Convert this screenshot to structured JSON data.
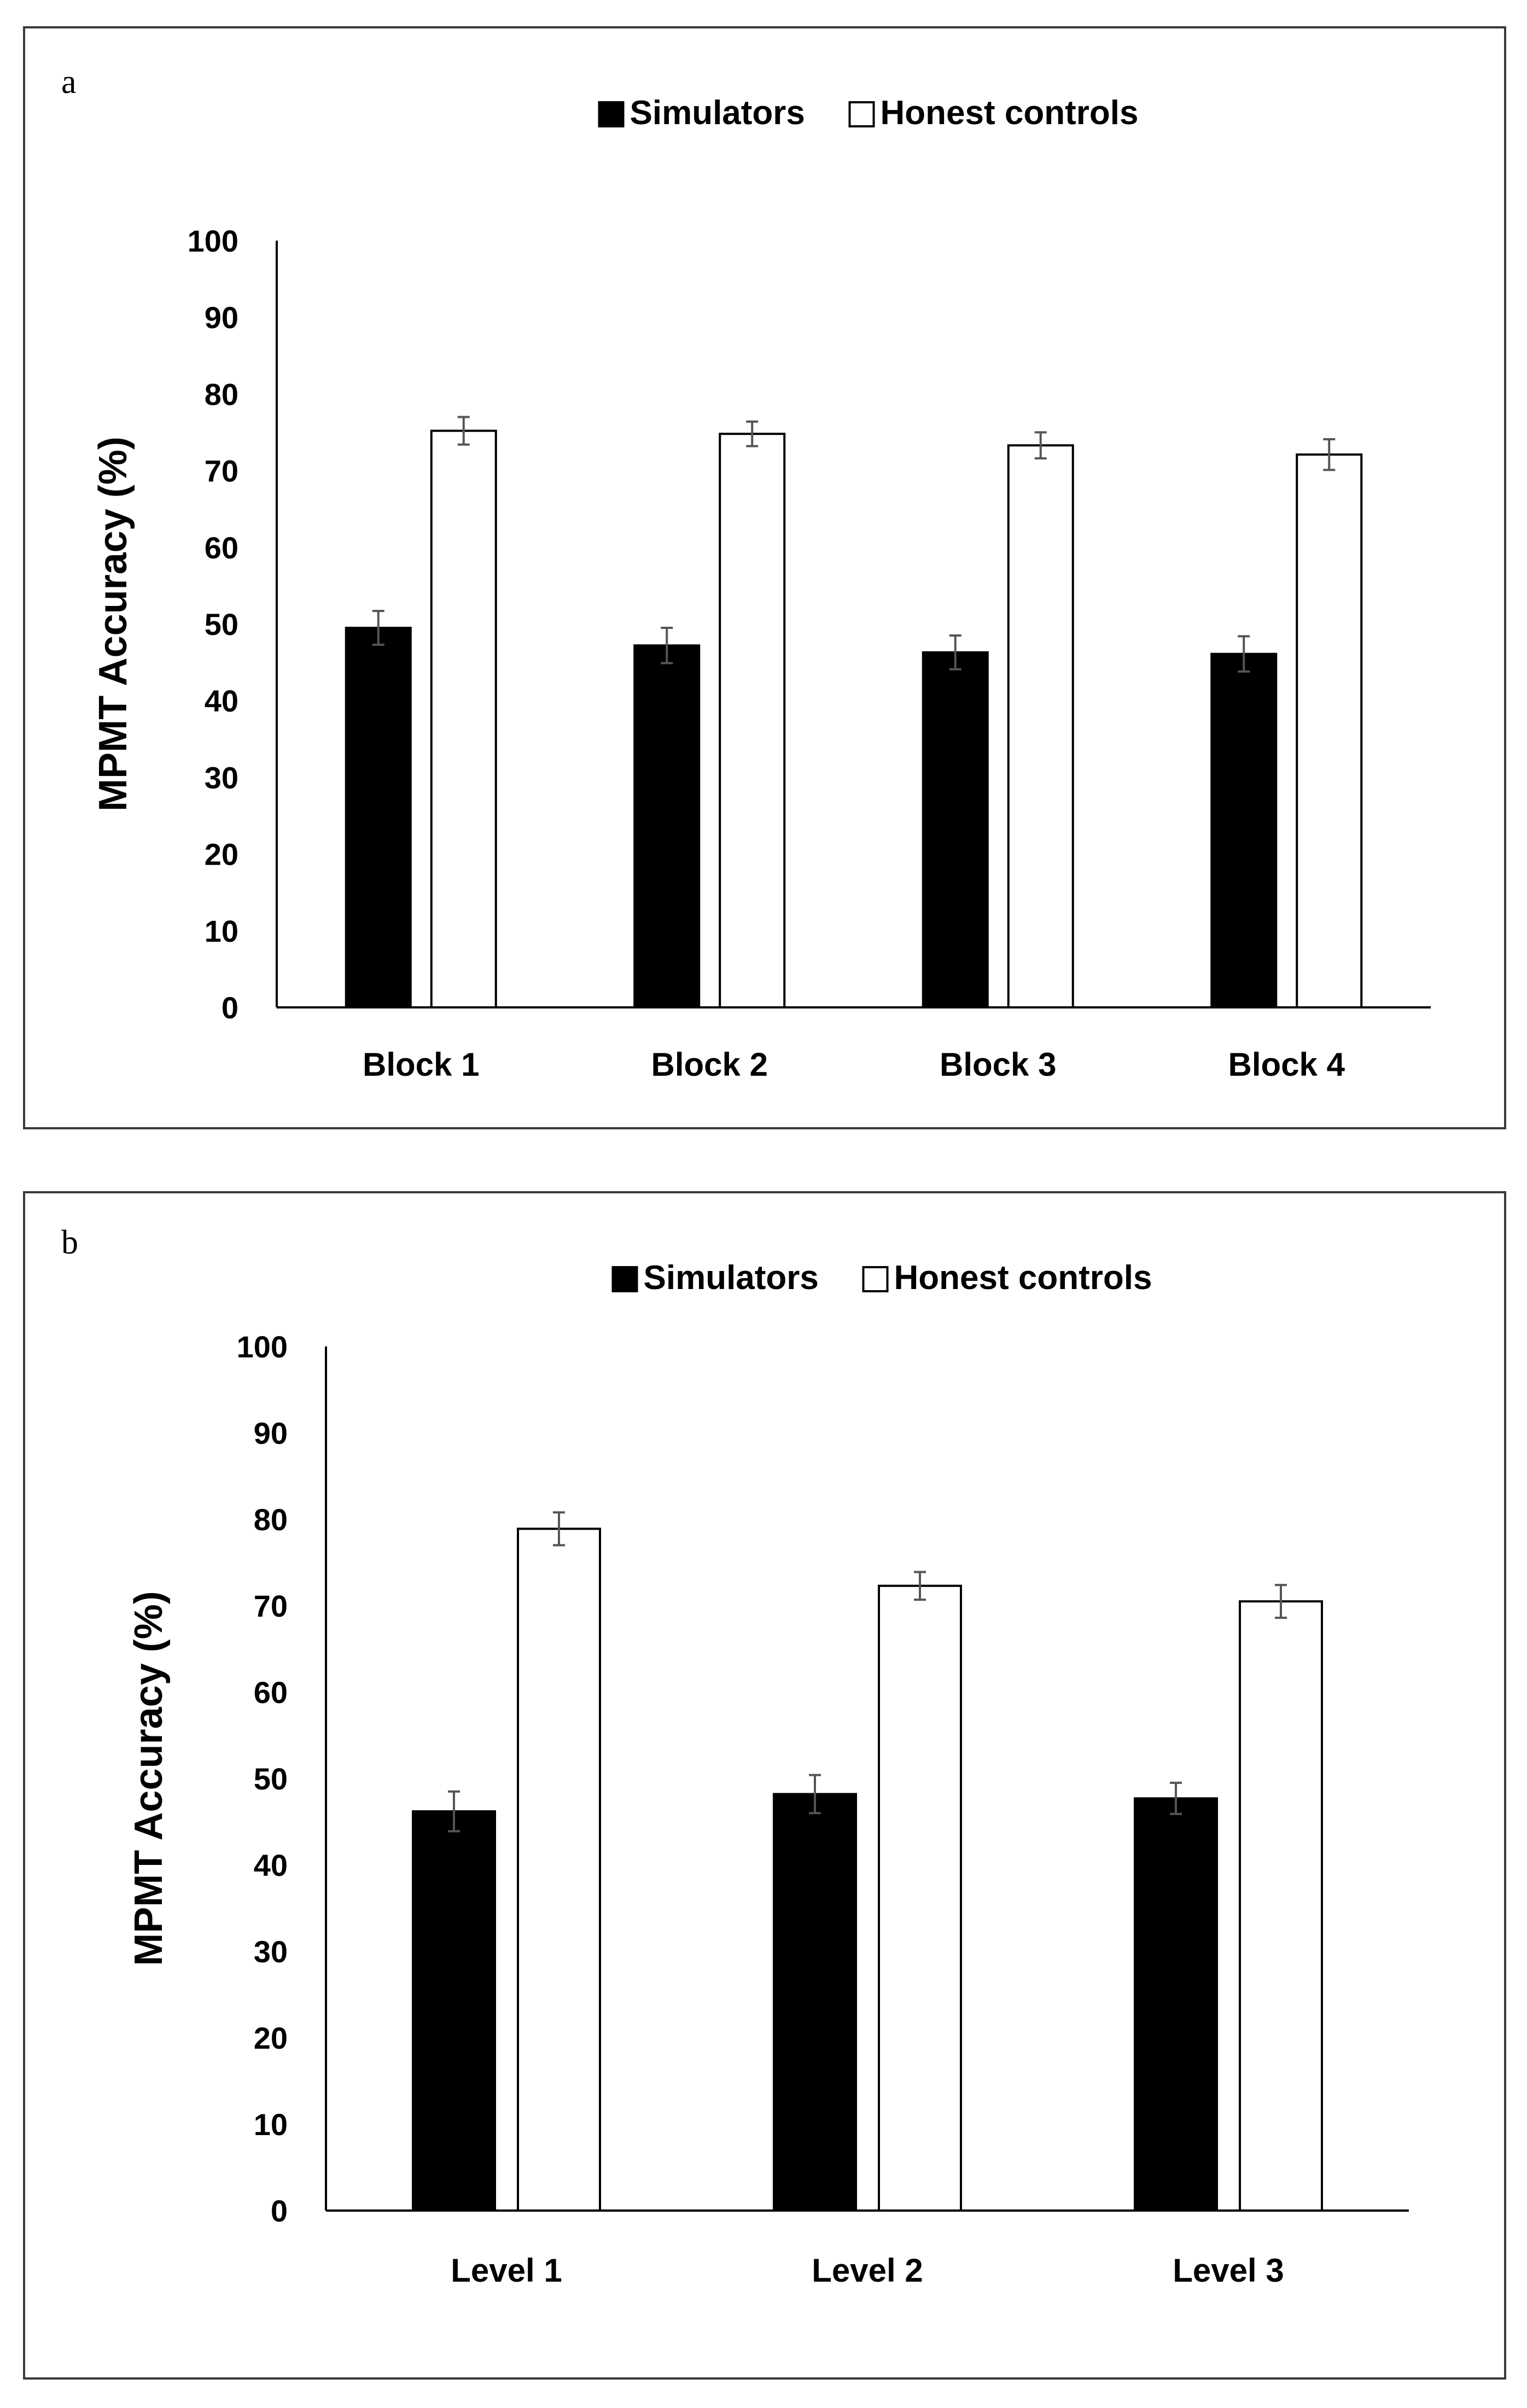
{
  "colors": {
    "simulators_fill": "#000000",
    "honest_fill": "#ffffff",
    "bar_stroke": "#000000",
    "axis": "#000000",
    "error_bar": "#555555",
    "frame": "#3a3a3a"
  },
  "chart_data": [
    {
      "id": "a",
      "type": "bar",
      "panel_label": "a",
      "ylabel": "MPMT Accuracy (%)",
      "xlabel": "",
      "ylim": [
        0,
        100
      ],
      "yticks": [
        "0",
        "10",
        "20",
        "30",
        "40",
        "50",
        "60",
        "70",
        "80",
        "90",
        "100"
      ],
      "grid": false,
      "legend_position": "top-center",
      "categories": [
        "Block 1",
        "Block 2",
        "Block 3",
        "Block 4"
      ],
      "series": [
        {
          "name": "Simulators",
          "fill": "#000000",
          "values": [
            49.5,
            47.2,
            46.3,
            46.1
          ],
          "errors": [
            2.2,
            2.3,
            2.2,
            2.3
          ]
        },
        {
          "name": "Honest controls",
          "fill": "#ffffff",
          "values": [
            75.2,
            74.8,
            73.3,
            72.1
          ],
          "errors": [
            1.8,
            1.6,
            1.7,
            2.0
          ]
        }
      ]
    },
    {
      "id": "b",
      "type": "bar",
      "panel_label": "b",
      "ylabel": "MPMT Accuracy (%)",
      "xlabel": "",
      "ylim": [
        0,
        100
      ],
      "yticks": [
        "0",
        "10",
        "20",
        "30",
        "40",
        "50",
        "60",
        "70",
        "80",
        "90",
        "100"
      ],
      "grid": false,
      "legend_position": "top-center",
      "categories": [
        "Level 1",
        "Level 2",
        "Level 3"
      ],
      "series": [
        {
          "name": "Simulators",
          "fill": "#000000",
          "values": [
            46.2,
            48.2,
            47.7
          ],
          "errors": [
            2.3,
            2.2,
            1.8
          ]
        },
        {
          "name": "Honest controls",
          "fill": "#ffffff",
          "values": [
            78.9,
            72.3,
            70.5
          ],
          "errors": [
            1.9,
            1.6,
            1.9
          ]
        }
      ]
    }
  ]
}
